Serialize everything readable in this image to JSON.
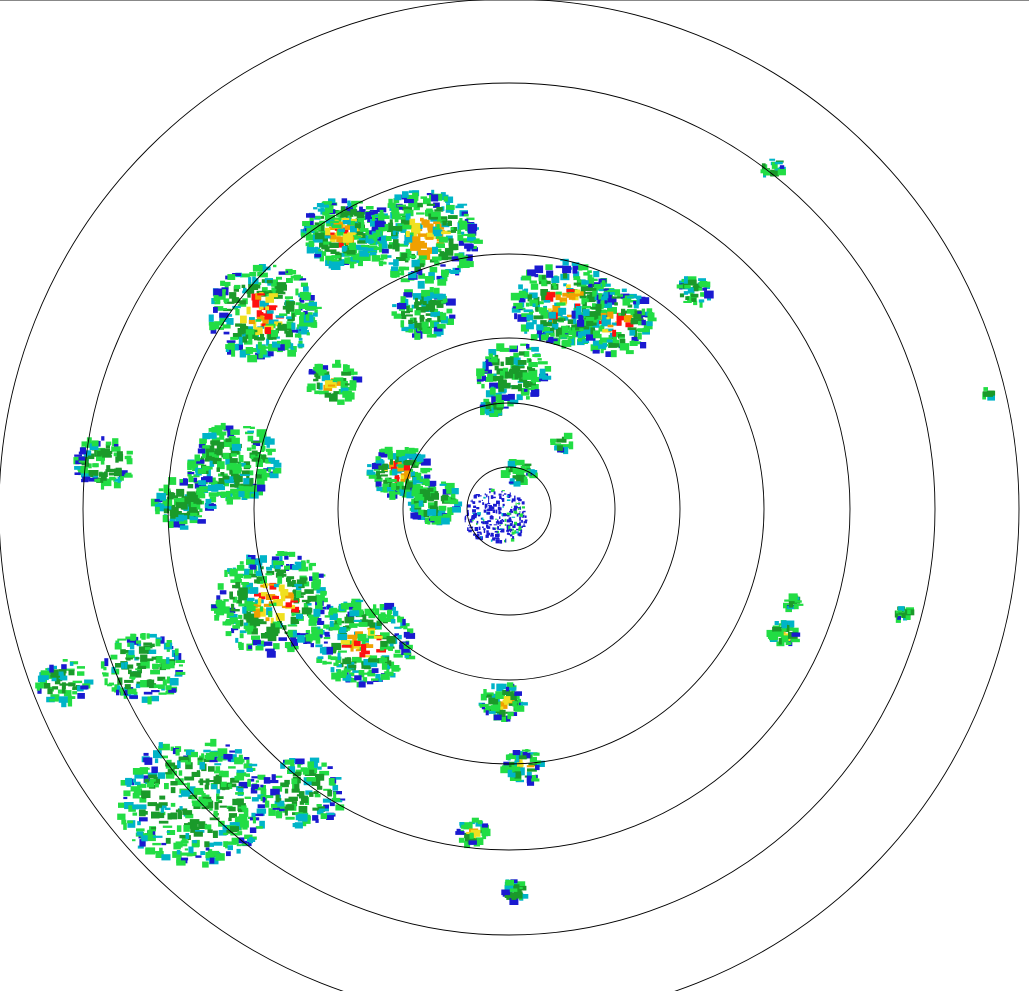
{
  "radar": {
    "range_ring_count": 7,
    "ring_color": "#000000",
    "background": "#ffffff",
    "reflectivity_palette": {
      "very_light": "#1a1ad0",
      "light_blue": "#00b4c8",
      "light_green": "#22dd44",
      "green": "#1a9a2a",
      "yellow": "#f0e020",
      "orange": "#f0a000",
      "red": "#ff1010"
    }
  }
}
